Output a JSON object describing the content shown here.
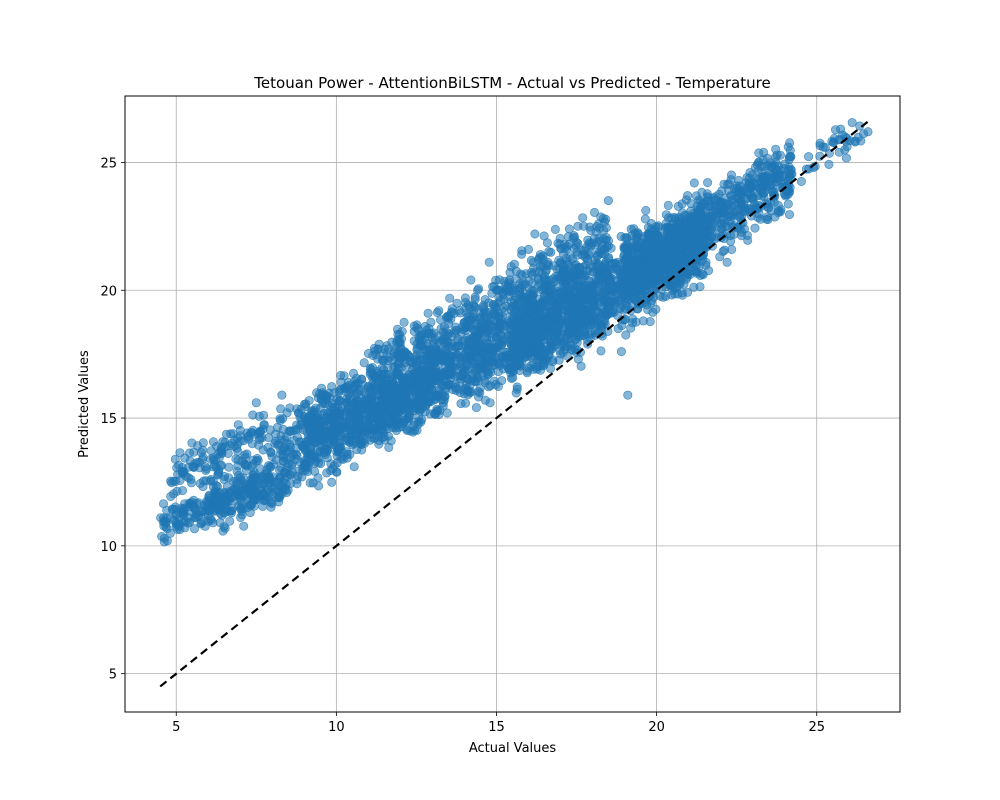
{
  "chart_data": {
    "type": "scatter",
    "title": "Tetouan Power - AttentionBiLSTM - Actual vs Predicted - Temperature",
    "xlabel": "Actual Values",
    "ylabel": "Predicted Values",
    "xlim": [
      3.4,
      27.6
    ],
    "ylim": [
      3.5,
      27.6
    ],
    "xticks": [
      5,
      10,
      15,
      20,
      25
    ],
    "yticks": [
      5,
      10,
      15,
      20,
      25
    ],
    "grid": true,
    "point_color": "#1f77b4",
    "point_alpha": 0.55,
    "reference_line": {
      "style": "dashed",
      "color": "#000000",
      "from": [
        4.5,
        4.5
      ],
      "to": [
        26.6,
        26.6
      ]
    },
    "point_clusters": [
      {
        "x_range": [
          4.5,
          8.5
        ],
        "y_at_start": 10.9,
        "y_at_end": 12.4,
        "spread": 0.35,
        "count": 220
      },
      {
        "x_range": [
          4.8,
          11.0
        ],
        "y_at_start": 12.7,
        "y_at_end": 15.9,
        "spread": 0.5,
        "count": 240
      },
      {
        "x_range": [
          6.0,
          13.0
        ],
        "y_at_start": 11.8,
        "y_at_end": 15.8,
        "spread": 0.6,
        "count": 420
      },
      {
        "x_range": [
          9.0,
          16.5
        ],
        "y_at_start": 14.3,
        "y_at_end": 18.4,
        "spread": 0.75,
        "count": 900
      },
      {
        "x_range": [
          11.0,
          18.5
        ],
        "y_at_start": 16.2,
        "y_at_end": 21.9,
        "spread": 0.75,
        "count": 700
      },
      {
        "x_range": [
          15.5,
          21.5
        ],
        "y_at_start": 17.8,
        "y_at_end": 22.1,
        "spread": 0.8,
        "count": 1300
      },
      {
        "x_range": [
          19.0,
          24.2
        ],
        "y_at_start": 20.8,
        "y_at_end": 24.4,
        "spread": 0.7,
        "count": 700
      },
      {
        "x_range": [
          23.8,
          26.6
        ],
        "y_at_start": 24.3,
        "y_at_end": 26.4,
        "spread": 0.35,
        "count": 40
      }
    ],
    "outliers": [
      {
        "x": 19.1,
        "y": 15.9
      },
      {
        "x": 18.9,
        "y": 17.6
      },
      {
        "x": 18.8,
        "y": 18.5
      },
      {
        "x": 20.8,
        "y": 19.9
      },
      {
        "x": 14.8,
        "y": 15.6
      },
      {
        "x": 26.6,
        "y": 26.2
      },
      {
        "x": 26.2,
        "y": 25.8
      },
      {
        "x": 25.7,
        "y": 25.4
      },
      {
        "x": 25.2,
        "y": 25.6
      },
      {
        "x": 24.9,
        "y": 24.8
      },
      {
        "x": 7.5,
        "y": 15.6
      },
      {
        "x": 8.3,
        "y": 15.9
      },
      {
        "x": 13.2,
        "y": 19.2
      },
      {
        "x": 14.2,
        "y": 20.4
      },
      {
        "x": 16.0,
        "y": 21.6
      },
      {
        "x": 16.2,
        "y": 22.2
      }
    ]
  }
}
